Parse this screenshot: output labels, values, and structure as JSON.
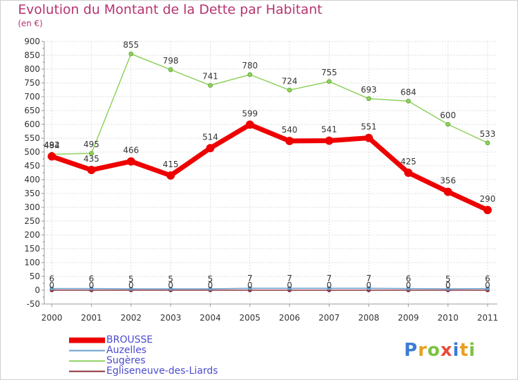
{
  "header": {
    "title": "Evolution du Montant de la Dette par Habitant",
    "subtitle": "(en €)"
  },
  "logo": {
    "text": "Proxiti"
  },
  "chart_data": {
    "type": "line",
    "title": "Evolution du Montant de la Dette par Habitant",
    "subtitle": "(en €)",
    "xlabel": "",
    "ylabel": "",
    "x": [
      "2000",
      "2001",
      "2002",
      "2003",
      "2004",
      "2005",
      "2006",
      "2007",
      "2008",
      "2009",
      "2010",
      "2011"
    ],
    "ylim": [
      -50,
      900
    ],
    "yticks": [
      -50,
      0,
      50,
      100,
      150,
      200,
      250,
      300,
      350,
      400,
      450,
      500,
      550,
      600,
      650,
      700,
      750,
      800,
      850,
      900
    ],
    "grid": true,
    "legend_position": "bottom-left",
    "series": [
      {
        "name": "BROUSSE",
        "color": "#ee0000",
        "values": [
          484,
          435,
          466,
          415,
          514,
          599,
          540,
          541,
          551,
          425,
          356,
          290
        ],
        "labels": [
          "484",
          "435",
          "466",
          "415",
          "514",
          "599",
          "540",
          "541",
          "551",
          "425",
          "356",
          "290"
        ]
      },
      {
        "name": "Auzelles",
        "color": "#6a9fcb",
        "values": [
          6,
          6,
          5,
          5,
          5,
          7,
          7,
          7,
          7,
          6,
          5,
          6
        ],
        "labels": [
          "6",
          "6",
          "5",
          "5",
          "5",
          "7",
          "7",
          "7",
          "7",
          "6",
          "5",
          "6"
        ]
      },
      {
        "name": "Sugères",
        "color": "#8ed15c",
        "values": [
          492,
          495,
          855,
          798,
          741,
          780,
          724,
          755,
          693,
          684,
          600,
          533
        ],
        "labels": [
          "492",
          "495",
          "855",
          "798",
          "741",
          "780",
          "724",
          "755",
          "693",
          "684",
          "600",
          "533"
        ]
      },
      {
        "name": "Egliseneuve-des-Liards",
        "color": "#8b2d3a",
        "values": [
          0,
          0,
          0,
          0,
          0,
          0,
          0,
          0,
          0,
          0,
          0,
          0
        ],
        "labels": [
          "0",
          "0",
          "0",
          "0",
          "0",
          "0",
          "0",
          "0",
          "0",
          "0",
          "0",
          "0"
        ]
      }
    ]
  }
}
